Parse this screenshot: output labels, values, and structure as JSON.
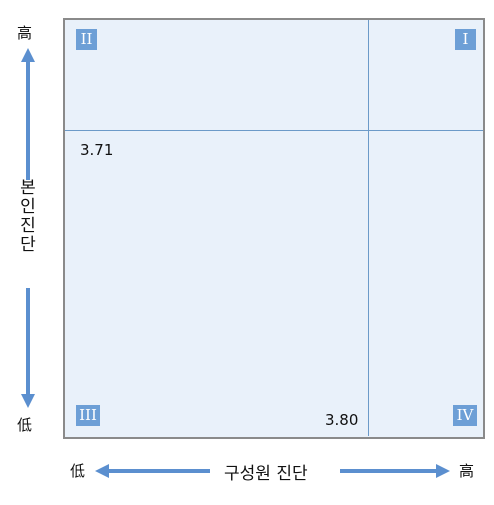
{
  "axes": {
    "y": {
      "label": "본인진단",
      "high": "高",
      "low": "低"
    },
    "x": {
      "label": "구성원 진단",
      "high": "高",
      "low": "低"
    }
  },
  "quadrants": {
    "q1": "I",
    "q2": "II",
    "q3": "III",
    "q4": "IV"
  },
  "thresholds": {
    "y_value": "3.71",
    "x_value": "3.80"
  },
  "colors": {
    "panel_fill": "#e9f1fa",
    "divider": "#6c9ac8",
    "badge": "#6d9fd6",
    "arrow": "#5b8fcf",
    "border": "#8a8a8a"
  }
}
